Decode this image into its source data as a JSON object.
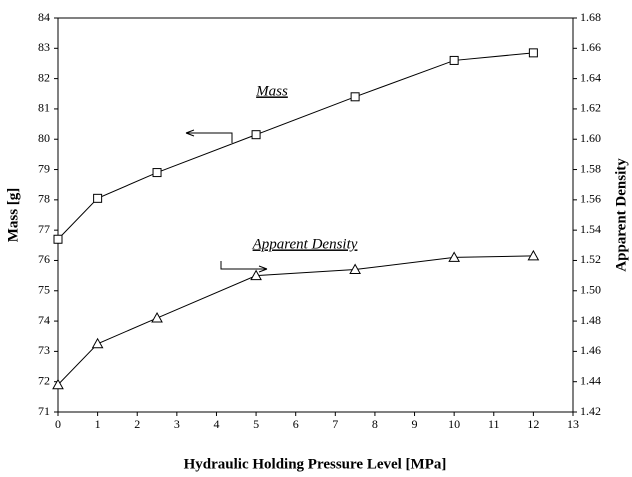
{
  "chart_data": {
    "type": "line",
    "x_label": "Hydraulic Holding Pressure Level [MPa]",
    "y_label": "Mass [g]",
    "y2_label": "Apparent Density",
    "x": [
      0,
      1,
      2.5,
      5,
      7.5,
      10,
      12
    ],
    "series": [
      {
        "name": "Mass",
        "color": "#000000",
        "marker": "square",
        "values": [
          76.7,
          78.05,
          78.9,
          80.15,
          81.4,
          82.6,
          82.85
        ]
      },
      {
        "name": "Apparent Density",
        "color": "#000000",
        "marker": "triangle",
        "axis": "y2",
        "values": [
          1.438,
          1.465,
          1.482,
          1.51,
          1.514,
          1.522,
          1.523
        ]
      }
    ],
    "xlim": [
      0,
      13
    ],
    "xticks": [
      0,
      1,
      2,
      3,
      4,
      5,
      6,
      7,
      8,
      9,
      10,
      11,
      12,
      13
    ],
    "ylim": [
      71,
      84
    ],
    "yticks": [
      71,
      72,
      73,
      74,
      75,
      76,
      77,
      78,
      79,
      80,
      81,
      82,
      83,
      84
    ],
    "y2lim": [
      1.42,
      1.68
    ],
    "y2ticks": [
      1.42,
      1.44,
      1.46,
      1.48,
      {
        "value": 1.5,
        "label": "1.50"
      },
      1.52,
      1.54,
      1.56,
      1.58,
      {
        "value": 1.6,
        "label": "1.60"
      },
      1.62,
      1.64,
      1.66,
      1.68
    ]
  }
}
